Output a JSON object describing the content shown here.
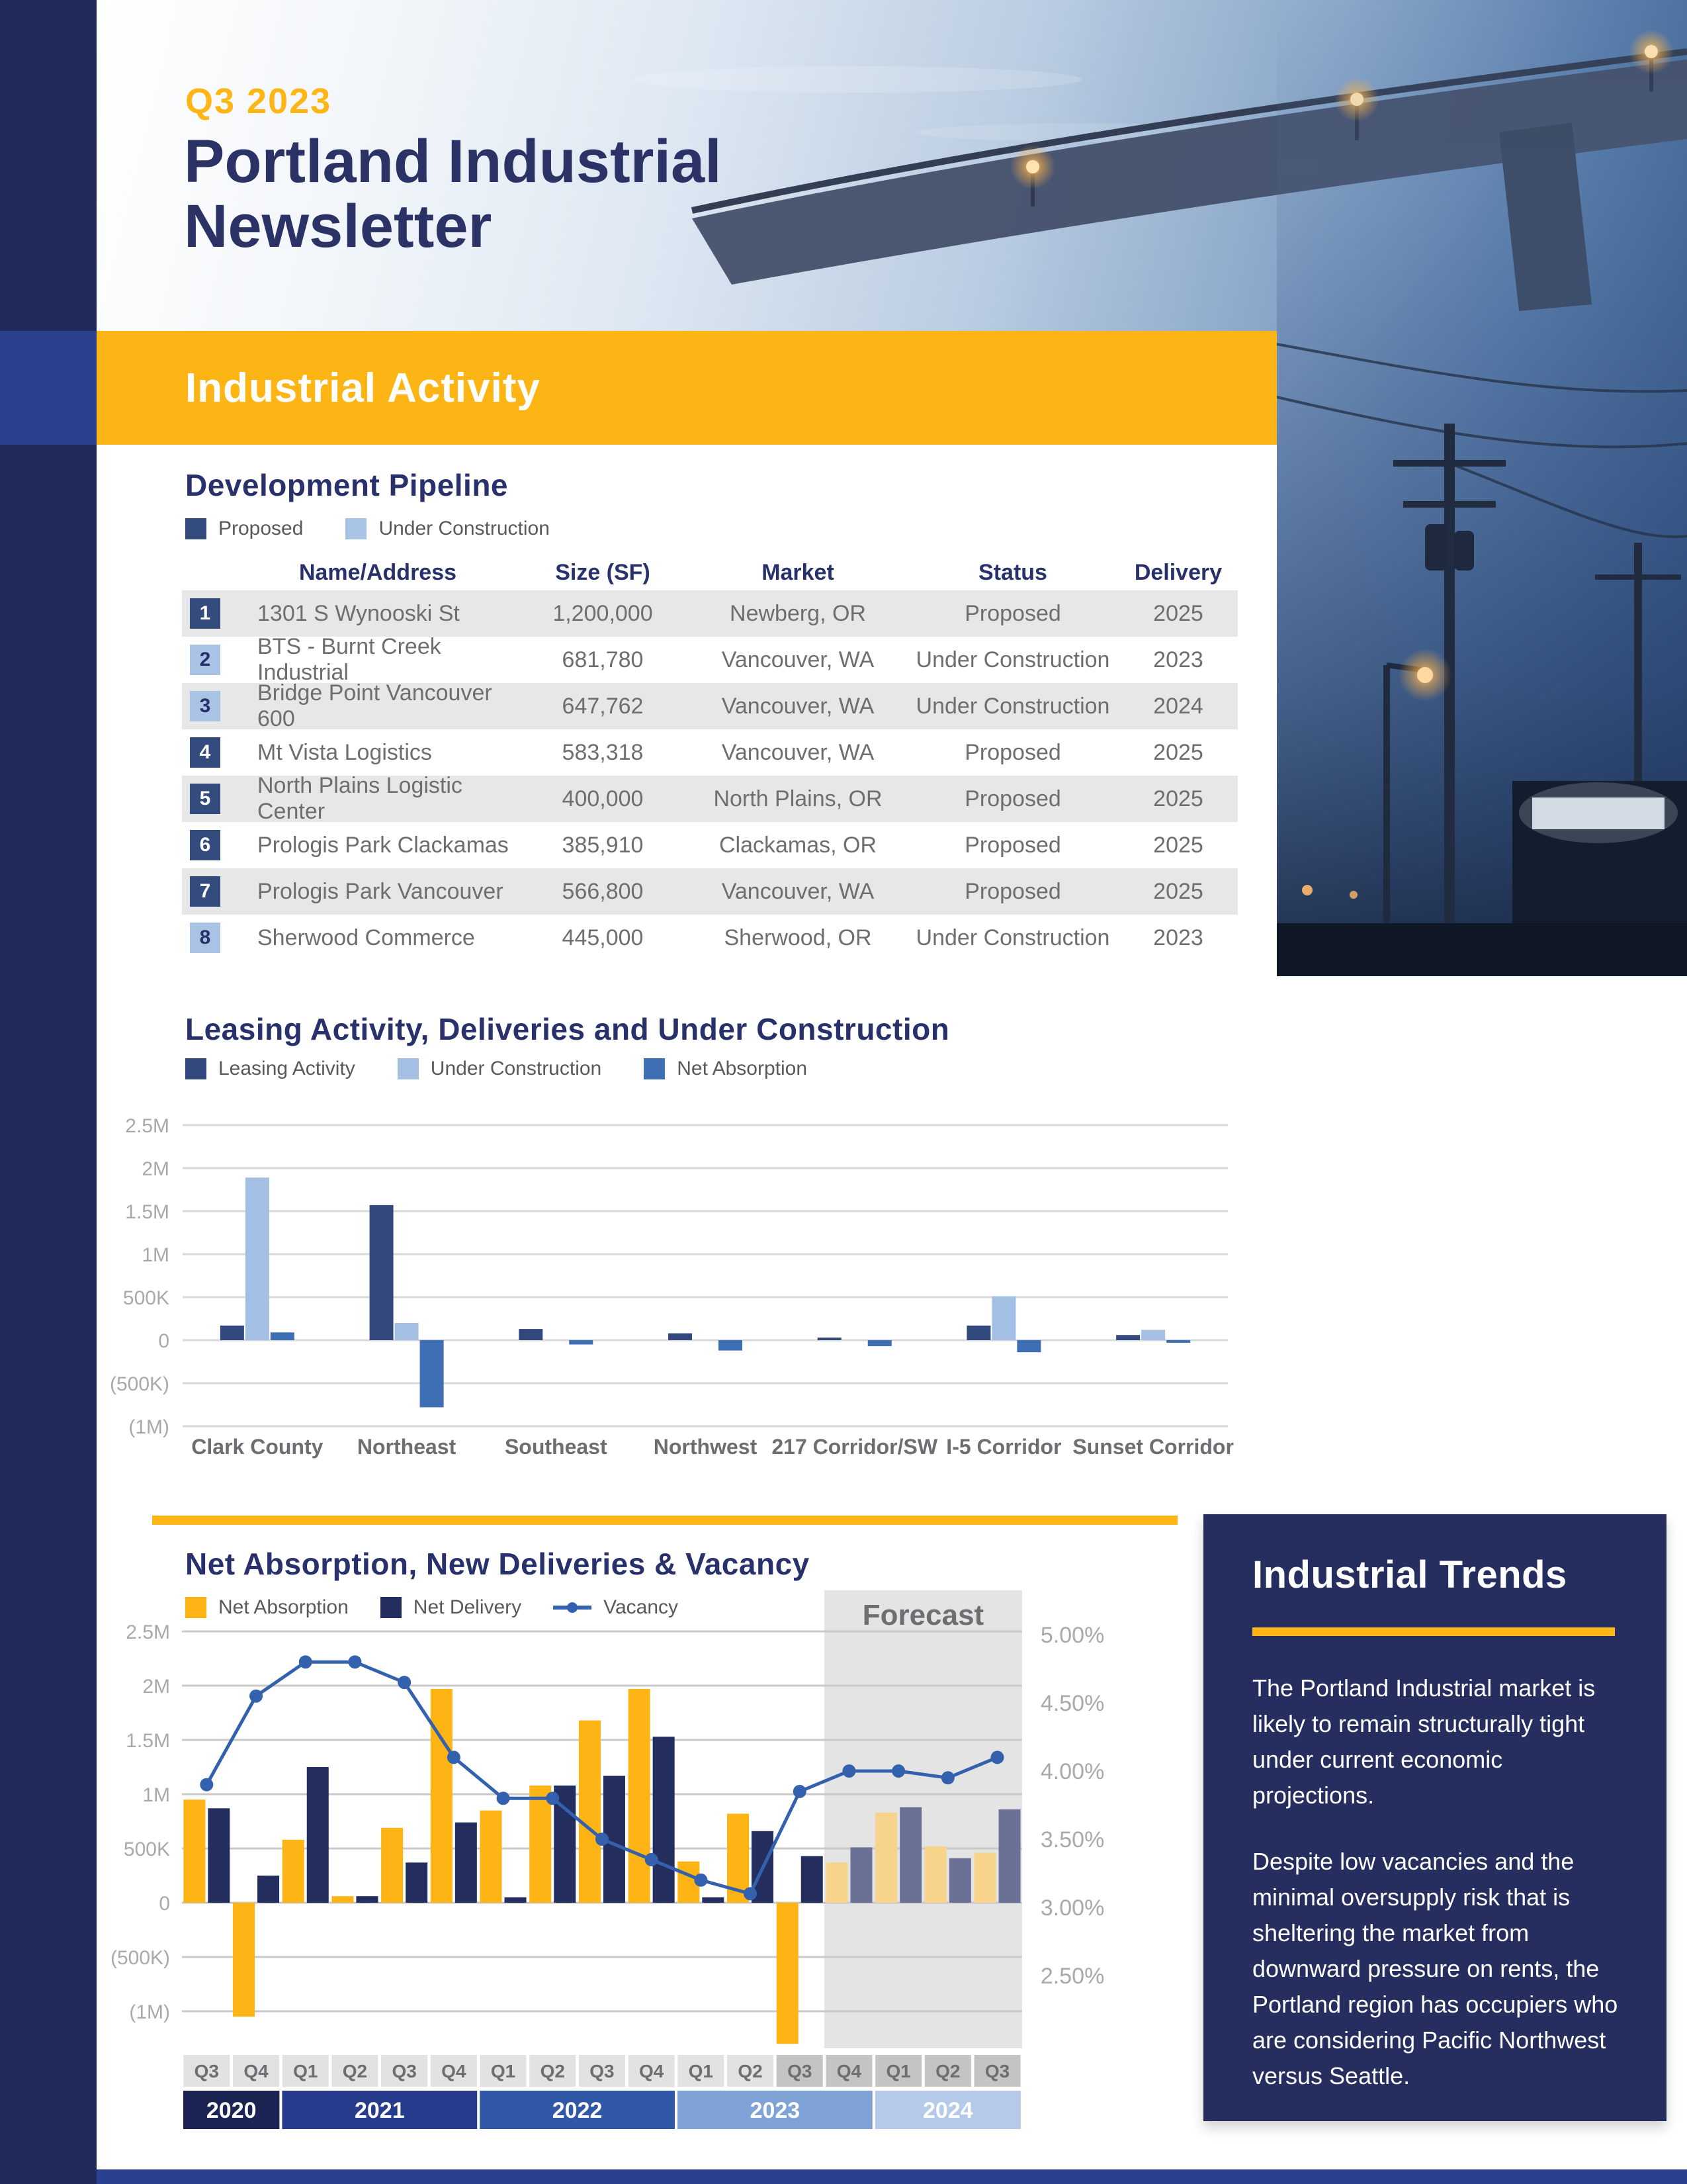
{
  "page": {
    "issue": "Q3 2023",
    "title": "Portland Industrial Newsletter",
    "banner": "Industrial Activity"
  },
  "pipeline": {
    "heading": "Development Pipeline",
    "legend": [
      {
        "label": "Proposed",
        "color": "#344b7e"
      },
      {
        "label": "Under Construction",
        "color": "#a9c3e5"
      }
    ],
    "columns": [
      "Name/Address",
      "Size (SF)",
      "Market",
      "Status",
      "Delivery"
    ],
    "rows": [
      {
        "num": "1",
        "name": "1301 S Wynooski St",
        "size": "1,200,000",
        "market": "Newberg, OR",
        "status": "Proposed",
        "delivery": "2025"
      },
      {
        "num": "2",
        "name": "BTS - Burnt Creek Industrial",
        "size": "681,780",
        "market": "Vancouver, WA",
        "status": "Under Construction",
        "delivery": "2023"
      },
      {
        "num": "3",
        "name": "Bridge Point Vancouver 600",
        "size": "647,762",
        "market": "Vancouver, WA",
        "status": "Under Construction",
        "delivery": "2024"
      },
      {
        "num": "4",
        "name": "Mt Vista Logistics",
        "size": "583,318",
        "market": "Vancouver, WA",
        "status": "Proposed",
        "delivery": "2025"
      },
      {
        "num": "5",
        "name": "North Plains Logistic Center",
        "size": "400,000",
        "market": "North Plains, OR",
        "status": "Proposed",
        "delivery": "2025"
      },
      {
        "num": "6",
        "name": "Prologis Park Clackamas",
        "size": "385,910",
        "market": "Clackamas, OR",
        "status": "Proposed",
        "delivery": "2025"
      },
      {
        "num": "7",
        "name": "Prologis Park Vancouver",
        "size": "566,800",
        "market": "Vancouver, WA",
        "status": "Proposed",
        "delivery": "2025"
      },
      {
        "num": "8",
        "name": "Sherwood Commerce",
        "size": "445,000",
        "market": "Sherwood, OR",
        "status": "Under Construction",
        "delivery": "2023"
      }
    ]
  },
  "chart_data": [
    {
      "type": "bar",
      "title": "Leasing Activity, Deliveries and Under Construction",
      "categories": [
        "Clark County",
        "Northeast",
        "Southeast",
        "Northwest",
        "217 Corridor/SW",
        "I-5 Corridor",
        "Sunset Corridor"
      ],
      "series": [
        {
          "name": "Leasing Activity",
          "color": "#33487c",
          "values": [
            170000,
            1570000,
            130000,
            80000,
            30000,
            170000,
            60000
          ]
        },
        {
          "name": "Under Construction",
          "color": "#a3c0e4",
          "values": [
            1890000,
            200000,
            0,
            0,
            0,
            510000,
            120000
          ]
        },
        {
          "name": "Net Absorption",
          "color": "#3e6fb5",
          "values": [
            90000,
            -780000,
            -50000,
            -120000,
            -70000,
            -140000,
            -30000
          ]
        }
      ],
      "ylim": [
        -1000000,
        2500000
      ],
      "ytick_labels": [
        "2.5M",
        "2M",
        "1.5M",
        "1M",
        "500K",
        "0",
        "(500K)",
        "(1M)"
      ],
      "grid": true,
      "legend_position": "top"
    },
    {
      "type": "bar+line",
      "title": "Net Absorption, New Deliveries & Vacancy",
      "categories": [
        "Q3 2020",
        "Q4 2020",
        "Q1 2021",
        "Q2 2021",
        "Q3 2021",
        "Q4 2021",
        "Q1 2022",
        "Q2 2022",
        "Q3 2022",
        "Q4 2022",
        "Q1 2023",
        "Q2 2023",
        "Q3 2023",
        "Q4 2023",
        "Q1 2024",
        "Q2 2024",
        "Q3 2024"
      ],
      "quarter_labels": [
        "Q3",
        "Q4",
        "Q1",
        "Q2",
        "Q3",
        "Q4",
        "Q1",
        "Q2",
        "Q3",
        "Q4",
        "Q1",
        "Q2",
        "Q3",
        "Q4",
        "Q1",
        "Q2",
        "Q3"
      ],
      "year_bands": [
        {
          "label": "2020",
          "span": 2,
          "color": "#1b2453"
        },
        {
          "label": "2021",
          "span": 4,
          "color": "#283c8d"
        },
        {
          "label": "2022",
          "span": 4,
          "color": "#3157a7"
        },
        {
          "label": "2023",
          "span": 4,
          "color": "#7fa3d6"
        },
        {
          "label": "2024",
          "span": 3,
          "color": "#b5c9e9"
        }
      ],
      "series": [
        {
          "name": "Net Absorption",
          "type": "bar",
          "color": "#fdb414",
          "forecast_color": "#f7d38c",
          "values": [
            950000,
            -1050000,
            580000,
            60000,
            690000,
            1970000,
            850000,
            1080000,
            1680000,
            1970000,
            380000,
            820000,
            -1300000,
            370000,
            830000,
            520000,
            460000
          ]
        },
        {
          "name": "Net Delivery",
          "type": "bar",
          "color": "#232d5e",
          "forecast_color": "#6b7097",
          "values": [
            870000,
            250000,
            1250000,
            60000,
            370000,
            740000,
            50000,
            1080000,
            1170000,
            1530000,
            50000,
            660000,
            430000,
            510000,
            880000,
            410000,
            860000
          ]
        },
        {
          "name": "Vacancy",
          "type": "line",
          "color": "#3461ad",
          "values_pct": [
            3.9,
            4.55,
            4.8,
            4.8,
            4.65,
            4.1,
            3.8,
            3.8,
            3.5,
            3.35,
            3.2,
            3.1,
            3.85,
            4.0,
            4.0,
            3.95,
            4.1
          ]
        }
      ],
      "ylim": [
        -1000000,
        2500000
      ],
      "left_ticks": [
        "2.5M",
        "2M",
        "1.5M",
        "1M",
        "500K",
        "0",
        "(500K)",
        "(1M)"
      ],
      "right_ticks": [
        "5.00%",
        "4.50%",
        "4.00%",
        "3.50%",
        "3.00%",
        "2.50%"
      ],
      "right_axis_range": [
        2.5,
        5.0
      ],
      "forecast": {
        "label": "Forecast",
        "start_index": 13
      },
      "shaded_quarters_start_index": 12,
      "grid": true,
      "legend_position": "top"
    }
  ],
  "trends": {
    "heading": "Industrial Trends",
    "paragraphs": [
      "The Portland Industrial market is likely to remain structurally tight under current economic projections.",
      "Despite low vacancies and the minimal oversupply risk that is sheltering the market from downward pressure on rents, the Portland region has occupiers who are considering Pacific Northwest versus Seattle."
    ]
  }
}
